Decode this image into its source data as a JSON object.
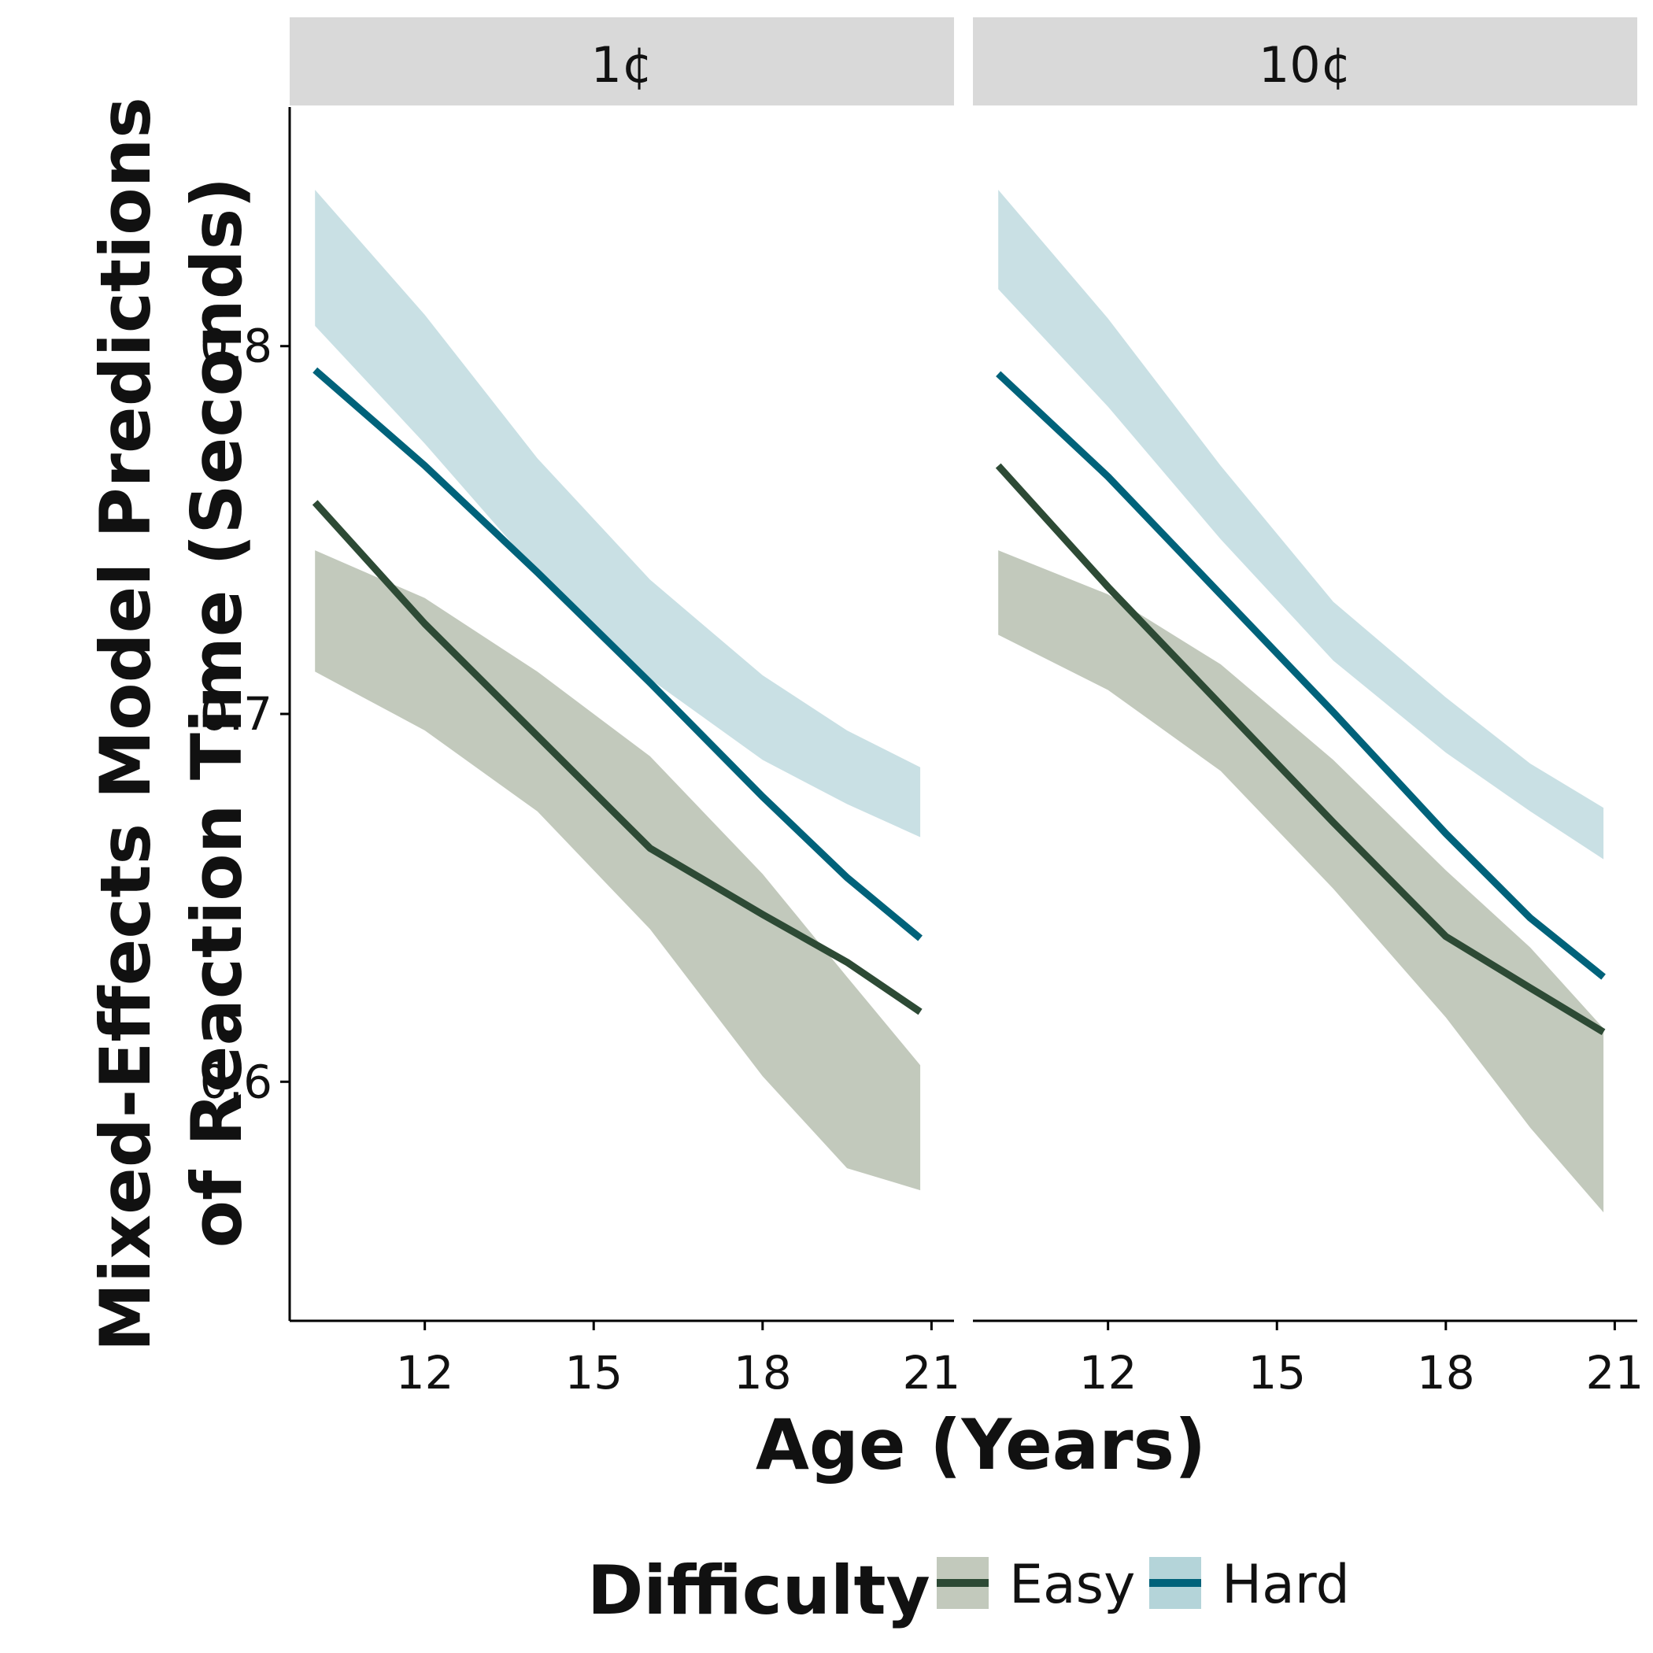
{
  "chart_data": {
    "type": "line",
    "xlabel": "Age (Years)",
    "ylabel": [
      "Mixed-Effects Model Predictions",
      "of Reaction Time (Seconds)"
    ],
    "x_ticks": [
      12,
      15,
      18,
      21
    ],
    "y_ticks": [
      0.6,
      0.7,
      0.8
    ],
    "y_tick_labels": [
      "0.6",
      "0.7",
      "0.8"
    ],
    "xlim": [
      9.6,
      21.4
    ],
    "ylim": [
      0.535,
      0.865
    ],
    "grid": false,
    "legend": {
      "title": "Difficulty",
      "placement": "bottom",
      "entries": [
        {
          "name": "Easy",
          "line_color": "#2d4a35",
          "fill_color": "#c2c9bc"
        },
        {
          "name": "Hard",
          "line_color": "#00627a",
          "fill_color": "#b4d4d9"
        }
      ]
    },
    "panels": [
      {
        "label": "1¢",
        "series": [
          {
            "name": "Easy",
            "x": [
              10.05,
              12,
              14,
              16,
              18,
              19.5,
              20.8
            ],
            "y": [
              0.7575,
              0.7245,
              0.694,
              0.6635,
              0.6455,
              0.6325,
              0.619
            ],
            "lower": [
              0.7115,
              0.6955,
              0.6735,
              0.6415,
              0.6015,
              0.5765,
              0.5705
            ],
            "upper": [
              0.7445,
              0.7315,
              0.7115,
              0.6885,
              0.6565,
              0.6285,
              0.6045
            ]
          },
          {
            "name": "Hard",
            "x": [
              10.05,
              12,
              14,
              16,
              18,
              19.5,
              20.8
            ],
            "y": [
              0.7935,
              0.7675,
              0.7385,
              0.7085,
              0.6775,
              0.6555,
              0.639
            ],
            "lower": [
              0.8055,
              0.7735,
              0.7385,
              0.7095,
              0.6875,
              0.6755,
              0.6665
            ],
            "upper": [
              0.8425,
              0.8085,
              0.7695,
              0.7365,
              0.7105,
              0.6955,
              0.6855
            ]
          }
        ]
      },
      {
        "label": "10¢",
        "series": [
          {
            "name": "Easy",
            "x": [
              10.05,
              12,
              14,
              16,
              18,
              19.5,
              20.8
            ],
            "y": [
              0.7675,
              0.7345,
              0.7025,
              0.6705,
              0.6395,
              0.6255,
              0.6135
            ],
            "lower": [
              0.7215,
              0.7065,
              0.6845,
              0.6525,
              0.6175,
              0.5875,
              0.5645
            ],
            "upper": [
              0.7445,
              0.7325,
              0.7135,
              0.6875,
              0.6575,
              0.6365,
              0.6145
            ]
          },
          {
            "name": "Hard",
            "x": [
              10.05,
              12,
              14,
              16,
              18,
              19.5,
              20.8
            ],
            "y": [
              0.7925,
              0.7645,
              0.7325,
              0.7005,
              0.6675,
              0.6445,
              0.6285
            ],
            "lower": [
              0.8155,
              0.7835,
              0.7475,
              0.7145,
              0.6895,
              0.6735,
              0.6605
            ],
            "upper": [
              0.8425,
              0.8075,
              0.7675,
              0.7305,
              0.7045,
              0.6865,
              0.6745
            ]
          }
        ]
      }
    ]
  }
}
